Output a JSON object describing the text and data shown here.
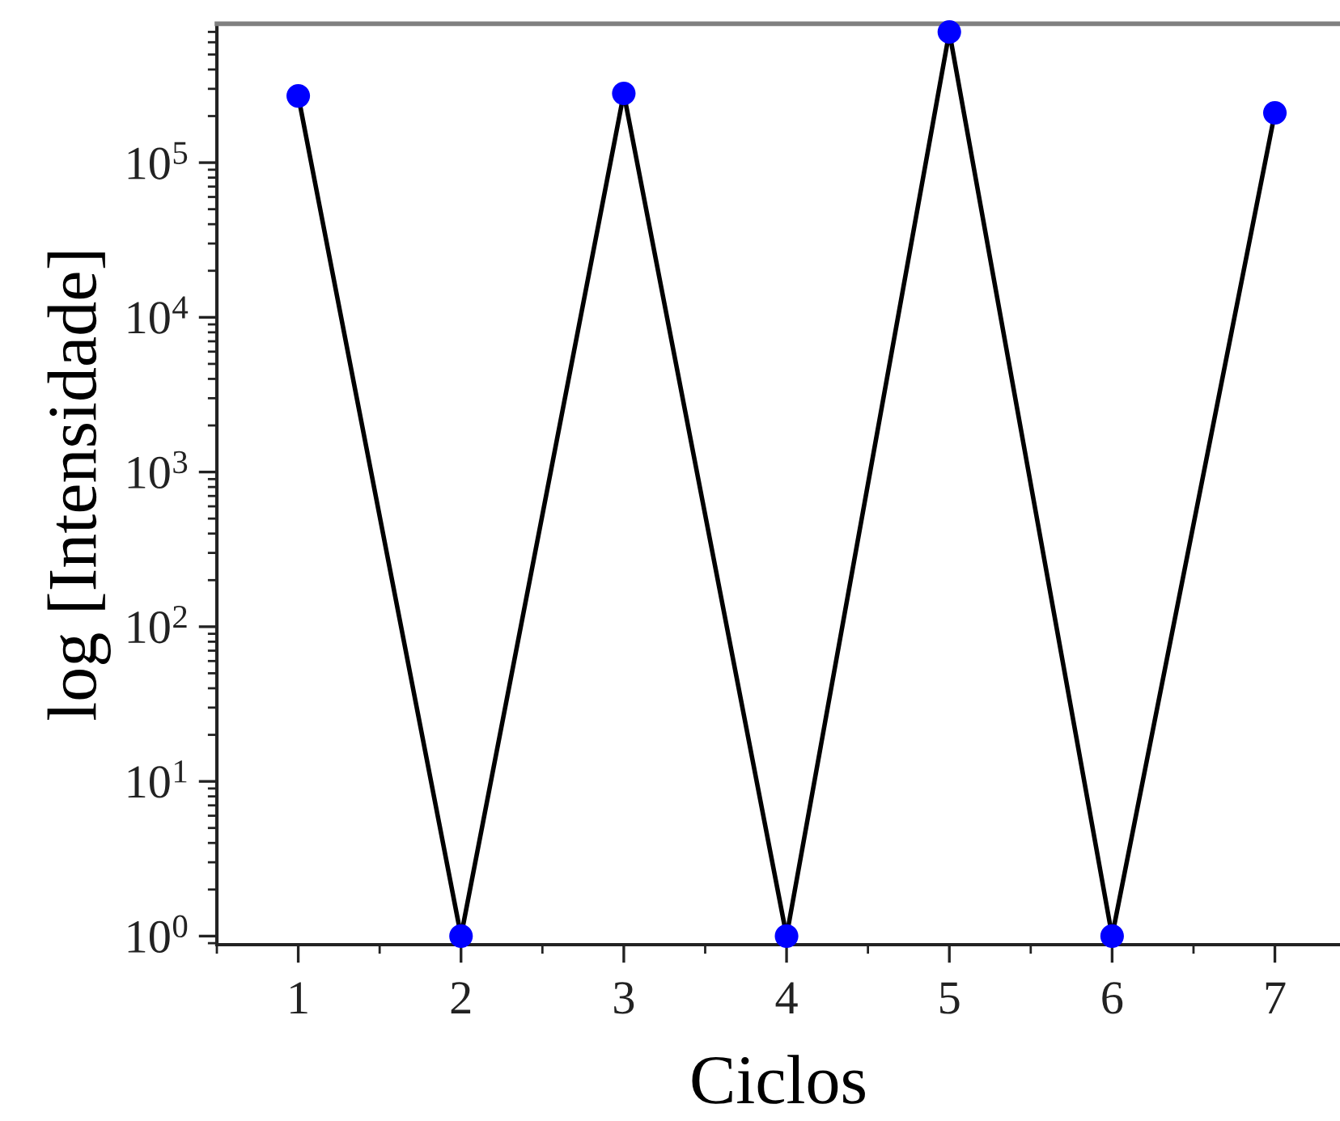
{
  "chart_data": {
    "type": "line",
    "xlabel": "Ciclos",
    "ylabel": "log [Intensidade]",
    "x": [
      1,
      2,
      3,
      4,
      5,
      6,
      7
    ],
    "series": [
      {
        "color": "#000000",
        "colors": [
          "#0000ff",
          "#0000ff",
          "#0000ff",
          "#0000ff",
          "#0000ff",
          "#0000ff",
          "#0000ff"
        ],
        "values": [
          270000,
          1,
          280000,
          1,
          700000,
          1,
          210000
        ]
      }
    ],
    "xlim": [
      0.5,
      7.4
    ],
    "xticks": [
      1,
      2,
      3,
      4,
      5,
      6,
      7
    ],
    "ylim": [
      0.88,
      790000
    ],
    "yticks": [
      {
        "value": 1,
        "label": "10$^{0}$"
      },
      {
        "value": 10,
        "label": "10$^{1}$"
      },
      {
        "value": 100,
        "label": "10$^{2}$"
      },
      {
        "value": 1000,
        "label": "10$^{3}$"
      },
      {
        "value": 10000,
        "label": "10$^{4}$"
      },
      {
        "value": 100000,
        "label": "10$^{5}$"
      }
    ],
    "log": "y",
    "grid": false,
    "marker": "circle",
    "line_style": "solid"
  }
}
